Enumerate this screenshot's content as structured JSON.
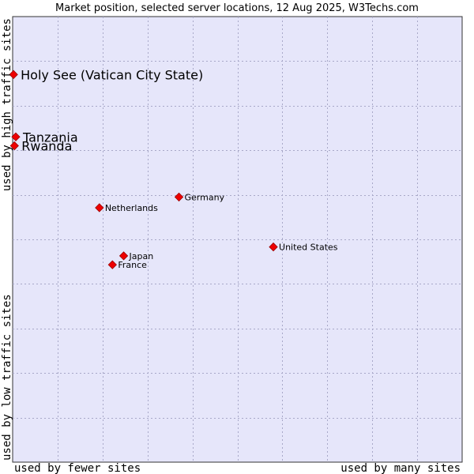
{
  "chart_data": {
    "type": "scatter",
    "title": "Market position, selected server locations, 12 Aug 2025, W3Techs.com",
    "xlabel_left": "used by fewer sites",
    "xlabel_right": "used by many sites",
    "ylabel_top": "used by high traffic sites",
    "ylabel_bottom": "used by low traffic sites",
    "xlim": [
      0,
      10
    ],
    "ylim": [
      0,
      10
    ],
    "grid": true,
    "colors": {
      "plot_bg": "#e6e6fa",
      "grid": "#a8a8c8",
      "border": "#333333",
      "marker": "#ee0000",
      "marker_stroke": "#990000",
      "text": "#000000"
    },
    "points": [
      {
        "label": "Holy See (Vatican City State)",
        "x": 0.02,
        "y": 8.7,
        "emphasis": true
      },
      {
        "label": "Tanzania",
        "x": 0.07,
        "y": 7.3,
        "emphasis": true
      },
      {
        "label": "Rwanda",
        "x": 0.04,
        "y": 7.1,
        "emphasis": true
      },
      {
        "label": "Germany",
        "x": 3.7,
        "y": 5.95,
        "emphasis": false
      },
      {
        "label": "Netherlands",
        "x": 1.93,
        "y": 5.71,
        "emphasis": false
      },
      {
        "label": "United States",
        "x": 5.8,
        "y": 4.83,
        "emphasis": false
      },
      {
        "label": "Japan",
        "x": 2.47,
        "y": 4.63,
        "emphasis": false
      },
      {
        "label": "France",
        "x": 2.22,
        "y": 4.43,
        "emphasis": false
      }
    ]
  }
}
